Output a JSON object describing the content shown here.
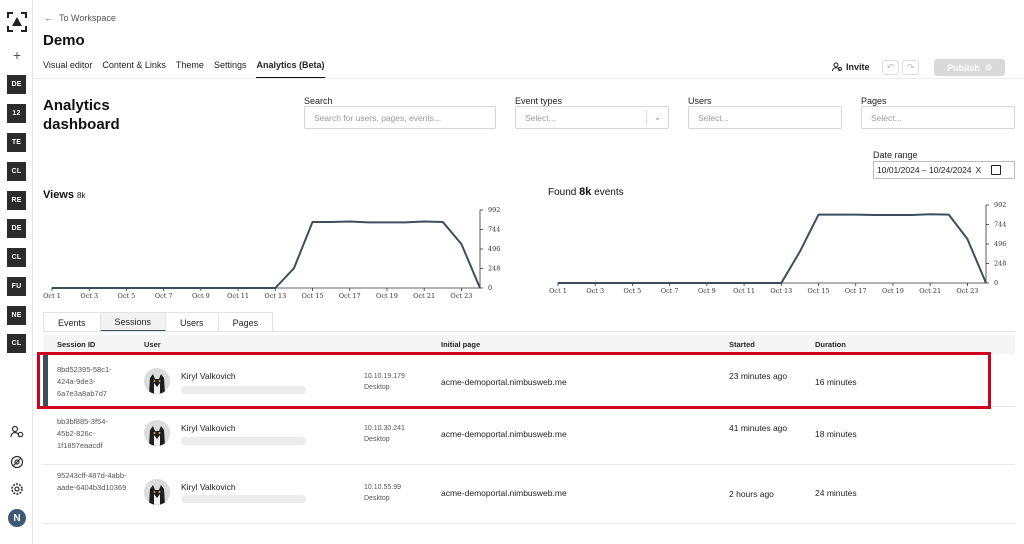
{
  "rail": {
    "items": [
      "DE",
      "12",
      "TE",
      "CL",
      "RE",
      "DE",
      "CL",
      "FU",
      "NE",
      "CL"
    ],
    "avatar_letter": "N"
  },
  "header": {
    "back_label": "To Workspace",
    "title": "Demo",
    "tabs": [
      "Visual editor",
      "Content & Links",
      "Theme",
      "Settings",
      "Analytics (Beta)"
    ],
    "active_tab": "Analytics (Beta)",
    "invite_label": "Invite",
    "publish_label": "Publish"
  },
  "dashboard": {
    "title": "Analytics dashboard",
    "filters": {
      "search": {
        "label": "Search",
        "placeholder": "Search for users, pages, events..."
      },
      "event_types": {
        "label": "Event types",
        "placeholder": "Select..."
      },
      "users": {
        "label": "Users",
        "placeholder": "Select..."
      },
      "pages": {
        "label": "Pages",
        "placeholder": "Select..."
      }
    },
    "date_range": {
      "label": "Date range",
      "value": "10/01/2024 – 10/24/2024",
      "clear": "X"
    }
  },
  "chart_data": [
    {
      "type": "line",
      "title": "Views",
      "count": "8k",
      "x": [
        "Oct 1",
        "Oct 2",
        "Oct 3",
        "Oct 4",
        "Oct 5",
        "Oct 6",
        "Oct 7",
        "Oct 8",
        "Oct 9",
        "Oct 10",
        "Oct 11",
        "Oct 12",
        "Oct 13",
        "Oct 14",
        "Oct 15",
        "Oct 16",
        "Oct 17",
        "Oct 18",
        "Oct 19",
        "Oct 20",
        "Oct 21",
        "Oct 22",
        "Oct 23",
        "Oct 24"
      ],
      "values": [
        0,
        0,
        0,
        0,
        0,
        0,
        0,
        0,
        0,
        0,
        0,
        0,
        0,
        250,
        840,
        840,
        845,
        835,
        835,
        835,
        845,
        840,
        560,
        0
      ],
      "xticks": [
        "Oct 1",
        "Oct 3",
        "Oct 5",
        "Oct 7",
        "Oct 9",
        "Oct 11",
        "Oct 13",
        "Oct 15",
        "Oct 17",
        "Oct 19",
        "Oct 21",
        "Oct 23"
      ],
      "yticks": [
        0,
        248,
        496,
        744,
        992
      ],
      "ylim": [
        0,
        992
      ],
      "color": "#3d4f5d"
    },
    {
      "type": "line",
      "title": "Found",
      "count": "8k",
      "suffix": "events",
      "x": [
        "Oct 1",
        "Oct 2",
        "Oct 3",
        "Oct 4",
        "Oct 5",
        "Oct 6",
        "Oct 7",
        "Oct 8",
        "Oct 9",
        "Oct 10",
        "Oct 11",
        "Oct 12",
        "Oct 13",
        "Oct 14",
        "Oct 15",
        "Oct 16",
        "Oct 17",
        "Oct 18",
        "Oct 19",
        "Oct 20",
        "Oct 21",
        "Oct 22",
        "Oct 23",
        "Oct 24"
      ],
      "values": [
        0,
        0,
        0,
        0,
        0,
        0,
        0,
        0,
        0,
        0,
        0,
        0,
        0,
        400,
        870,
        870,
        870,
        865,
        865,
        865,
        875,
        870,
        560,
        0
      ],
      "xticks": [
        "Oct 1",
        "Oct 3",
        "Oct 5",
        "Oct 7",
        "Oct 9",
        "Oct 11",
        "Oct 13",
        "Oct 15",
        "Oct 17",
        "Oct 19",
        "Oct 21",
        "Oct 23"
      ],
      "yticks": [
        0,
        248,
        496,
        744,
        992
      ],
      "ylim": [
        0,
        992
      ],
      "color": "#3d4f5d"
    }
  ],
  "subtabs": [
    "Events",
    "Sessions",
    "Users",
    "Pages"
  ],
  "active_subtab": "Sessions",
  "table": {
    "headers": {
      "session": "Session ID",
      "user": "User",
      "initial_page": "Initial page",
      "started": "Started",
      "duration": "Duration"
    },
    "rows": [
      {
        "session_id": "8bd52395-58c1-424a-9de3-6a7e3a8ab7d7",
        "user": "Kiryl Valkovich",
        "ip": "10.10.19.179",
        "device": "Desktop",
        "page": "acme-demoportal.nimbusweb.me",
        "started": "23 minutes ago",
        "duration": "16 minutes"
      },
      {
        "session_id": "bb3bf885-3f54-45b2-826c-1f1857eaacdf",
        "user": "Kiryl Valkovich",
        "ip": "10.10.30.241",
        "device": "Desktop",
        "page": "acme-demoportal.nimbusweb.me",
        "started": "41 minutes ago",
        "duration": "18 minutes"
      },
      {
        "session_id": "95243cff-487d-4abb-aade-6404b3d10369",
        "user": "Kiryl Valkovich",
        "ip": "10.10.55.99",
        "device": "Desktop",
        "page": "acme-demoportal.nimbusweb.me",
        "started": "2 hours ago",
        "duration": "24 minutes"
      }
    ]
  },
  "colors": {
    "accent": "#3d4f5d",
    "highlight": "#d0021b"
  }
}
